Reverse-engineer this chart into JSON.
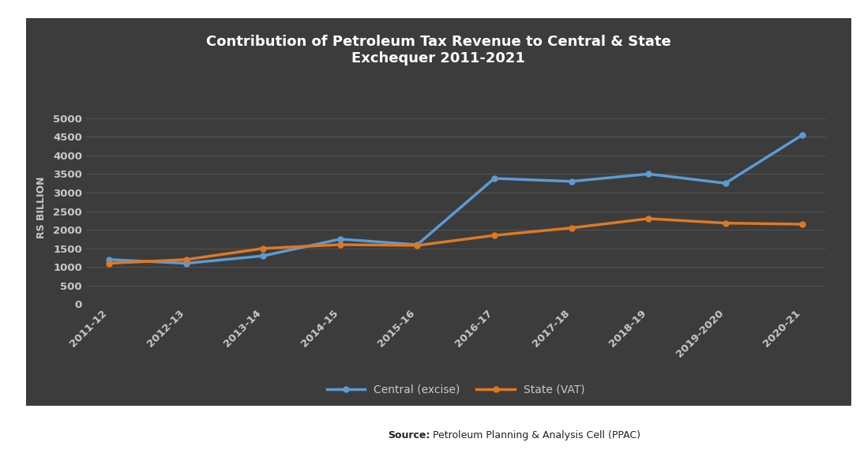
{
  "title": "Contribution of Petroleum Tax Revenue to Central & State\nExchequer 2011-2021",
  "categories": [
    "2011-12",
    "2012-13",
    "2013-14",
    "2014-15",
    "2015-16",
    "2016-17",
    "2017-18",
    "2018-19",
    "2019-2020",
    "2020-21"
  ],
  "central_excise": [
    1200,
    1100,
    1300,
    1750,
    1600,
    3380,
    3300,
    3500,
    3250,
    4550
  ],
  "state_vat": [
    1100,
    1200,
    1500,
    1600,
    1580,
    1850,
    2050,
    2300,
    2180,
    2150
  ],
  "central_color": "#5B9BD5",
  "state_color": "#E07820",
  "dark_bg_color": "#3C3C3C",
  "outer_bg_color": "#FFFFFF",
  "text_color": "#C8C8C8",
  "title_color": "#FFFFFF",
  "grid_color": "#555555",
  "ylabel": "RS BILLION",
  "ylim": [
    0,
    5200
  ],
  "yticks": [
    0,
    500,
    1000,
    1500,
    2000,
    2500,
    3000,
    3500,
    4000,
    4500,
    5000
  ],
  "source_bold": "Source:",
  "source_rest": " Petroleum Planning & Analysis Cell (PPAC)",
  "legend_central": "Central (excise)",
  "legend_state": "State (VAT)",
  "line_width": 2.5,
  "marker_size": 5
}
